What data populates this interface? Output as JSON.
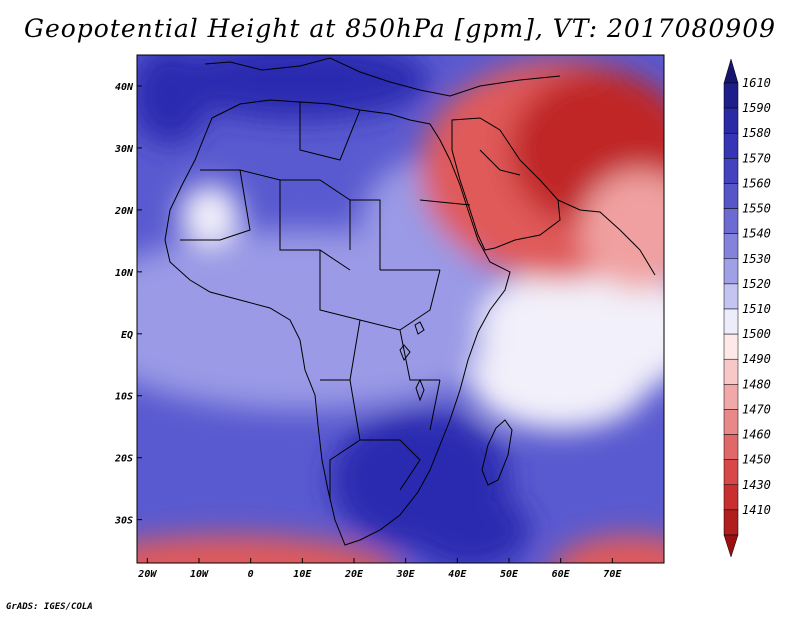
{
  "title": "Geopotential Height at 850hPa [gpm], VT: 2017080909",
  "credit": "GrADS: IGES/COLA",
  "map": {
    "lon_range": [
      -22,
      80
    ],
    "lat_range": [
      -37,
      45
    ],
    "x_ticks": [
      {
        "lon": -20,
        "label": "20W"
      },
      {
        "lon": -10,
        "label": "10W"
      },
      {
        "lon": 0,
        "label": "0"
      },
      {
        "lon": 10,
        "label": "10E"
      },
      {
        "lon": 20,
        "label": "20E"
      },
      {
        "lon": 30,
        "label": "30E"
      },
      {
        "lon": 40,
        "label": "40E"
      },
      {
        "lon": 50,
        "label": "50E"
      },
      {
        "lon": 60,
        "label": "60E"
      },
      {
        "lon": 70,
        "label": "70E"
      }
    ],
    "y_ticks": [
      {
        "lat": 40,
        "label": "40N"
      },
      {
        "lat": 30,
        "label": "30N"
      },
      {
        "lat": 20,
        "label": "20N"
      },
      {
        "lat": 10,
        "label": "10N"
      },
      {
        "lat": 0,
        "label": "EQ"
      },
      {
        "lat": -10,
        "label": "10S"
      },
      {
        "lat": -20,
        "label": "20S"
      },
      {
        "lat": -30,
        "label": "30S"
      }
    ]
  },
  "colorbar": {
    "labels": [
      "1610",
      "1590",
      "1580",
      "1570",
      "1560",
      "1550",
      "1540",
      "1530",
      "1520",
      "1510",
      "1500",
      "1490",
      "1480",
      "1470",
      "1460",
      "1450",
      "1430",
      "1410"
    ],
    "colors": [
      "#1e1e8a",
      "#2a2aa6",
      "#3535b5",
      "#4343c0",
      "#5656c9",
      "#6b6bd2",
      "#8383dc",
      "#a0a0e6",
      "#c4c4f0",
      "#ececfa",
      "#ffe8e8",
      "#f8c8c8",
      "#f0a8a8",
      "#e88888",
      "#e06868",
      "#d84848",
      "#c83030",
      "#b01e1e"
    ],
    "top_arrow_color": "#161670",
    "bottom_arrow_color": "#9a1010"
  },
  "field_colors": {
    "deep_blue": "#2b2bb0",
    "mid_blue": "#5a5ad0",
    "light_blue": "#9a9ae6",
    "pale": "#f2f0fa",
    "light_red": "#f0a0a0",
    "mid_red": "#e05a5a",
    "deep_red": "#c02828"
  }
}
